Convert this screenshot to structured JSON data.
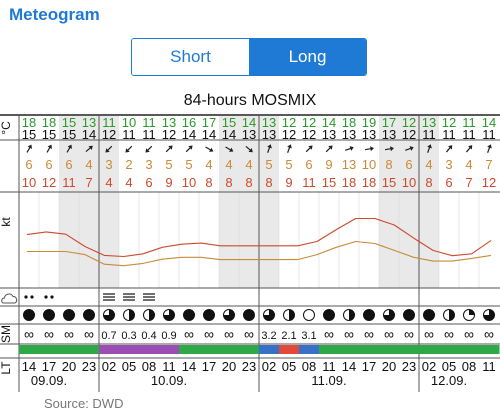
{
  "app": {
    "title": "Meteogram"
  },
  "toggle": {
    "options": [
      "Short",
      "Long"
    ],
    "selected": "Long"
  },
  "chart_title": "84-hours MOSMIX",
  "source": "Source: DWD",
  "colors": {
    "accent": "#1f7ad6",
    "temp_max": "#2a9a2a",
    "gust": "#cc4a2c",
    "wind": "#c98a3a",
    "precip_purple": "#9a4db3",
    "precip_green": "#2fa84a",
    "precip_blue": "#3a6fc8",
    "precip_red": "#e04a3a",
    "night_shade": "#e9e9e9"
  },
  "row_labels": {
    "temperature_unit": "°C",
    "wind_unit": "kt",
    "sunshine": "SM",
    "local_time": "LT",
    "cloud_icon": "cloud-icon"
  },
  "chart_data": {
    "type": "table",
    "x_hours": [
      "14",
      "17",
      "20",
      "23",
      "02",
      "05",
      "08",
      "11",
      "14",
      "17",
      "20",
      "23",
      "02",
      "05",
      "08",
      "11",
      "14",
      "17",
      "20",
      "23",
      "02",
      "05",
      "08",
      "11"
    ],
    "dates": [
      {
        "label": "09.09.",
        "col": 1
      },
      {
        "label": "10.09.",
        "col": 7
      },
      {
        "label": "11.09.",
        "col": 15
      },
      {
        "label": "12.09.",
        "col": 21
      }
    ],
    "temp_max": [
      "18",
      "18",
      "15",
      "13",
      "11",
      "10",
      "11",
      "13",
      "16",
      "17",
      "15",
      "14",
      "13",
      "12",
      "12",
      "14",
      "18",
      "19",
      "17",
      "12",
      "13",
      "12",
      "11",
      "14"
    ],
    "temp_min": [
      "15",
      "15",
      "15",
      "14",
      "12",
      "11",
      "11",
      "12",
      "14",
      "14",
      "14",
      "13",
      "13",
      "12",
      "12",
      "13",
      "13",
      "13",
      "13",
      "12",
      "11",
      "11",
      "11",
      "11"
    ],
    "wind_dir_deg": [
      30,
      30,
      30,
      50,
      225,
      225,
      225,
      45,
      45,
      120,
      120,
      130,
      20,
      20,
      45,
      45,
      70,
      80,
      80,
      70,
      20,
      40,
      40,
      20
    ],
    "wind_kt": [
      "6",
      "6",
      "6",
      "4",
      "3",
      "2",
      "3",
      "5",
      "5",
      "4",
      "4",
      "4",
      "5",
      "5",
      "6",
      "9",
      "13",
      "10",
      "8",
      "6",
      "4",
      "3",
      "4",
      "7"
    ],
    "gust_kt": [
      "10",
      "12",
      "11",
      "7",
      "4",
      "4",
      "6",
      "9",
      "10",
      "8",
      "8",
      "8",
      "8",
      "9",
      "11",
      "15",
      "18",
      "18",
      "15",
      "10",
      "8",
      "6",
      "7",
      "12"
    ],
    "wind_curve": [
      9.5,
      9.5,
      9.5,
      8.7,
      6.2,
      5.8,
      6.4,
      7.5,
      8.0,
      8.0,
      7.4,
      7.4,
      7.4,
      7.4,
      7.4,
      8.7,
      10.6,
      12.1,
      11.6,
      9.8,
      8.0,
      7.0,
      7.0,
      7.7,
      8.5
    ],
    "gust_curve": [
      13.9,
      14.6,
      14.0,
      10.8,
      8.5,
      8.2,
      8.9,
      10.6,
      11.4,
      11.7,
      11.0,
      11.0,
      11.0,
      11.0,
      11.0,
      12.1,
      15.2,
      18.1,
      18.1,
      16.4,
      13.0,
      9.8,
      8.4,
      8.9,
      12.4
    ],
    "y_range_kt": [
      0,
      25
    ],
    "precip_type": [
      "drizzle",
      "drizzle",
      "none",
      "none",
      "rain",
      "rain",
      "rain",
      "none",
      "none",
      "none",
      "none",
      "none",
      "none",
      "none",
      "none",
      "none",
      "none",
      "none",
      "none",
      "none",
      "none",
      "none",
      "none",
      "none"
    ],
    "sunshine": [
      "8",
      "8",
      "8",
      "8",
      "6",
      "4",
      "4",
      "6",
      "8",
      "8",
      "6",
      "8",
      "6",
      "4",
      "0",
      "8",
      "4",
      "8",
      "6",
      "8",
      "8",
      "4",
      "2",
      "6"
    ],
    "precip_mm": [
      "∞",
      "∞",
      "∞",
      "∞",
      "0.7",
      "0.3",
      "0.4",
      "0.9",
      "∞",
      "∞",
      "∞",
      "∞",
      "3.2",
      "2.1",
      "3.1",
      "∞",
      "∞",
      "∞",
      "∞",
      "∞",
      "∞",
      "∞",
      "∞",
      "∞"
    ],
    "precip_bar": [
      "green",
      "green",
      "green",
      "green",
      "purple",
      "purple",
      "purple",
      "purple",
      "green",
      "green",
      "green",
      "green",
      "blue",
      "red",
      "blue",
      "green",
      "green",
      "green",
      "green",
      "green",
      "green",
      "green",
      "green",
      "green"
    ]
  }
}
